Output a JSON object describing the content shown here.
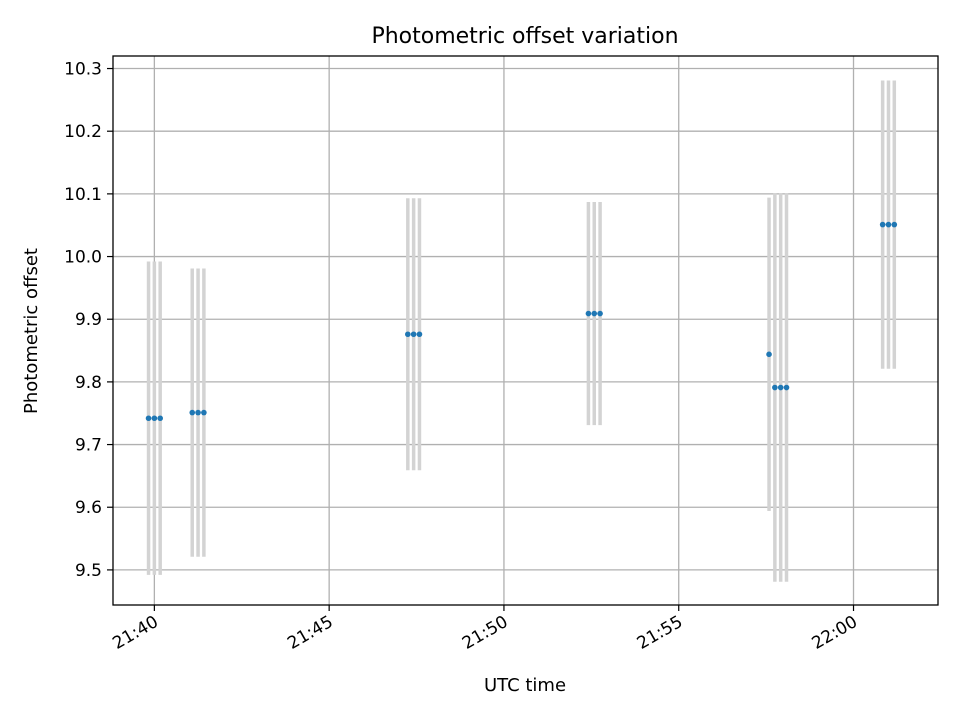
{
  "chart_data": {
    "type": "scatter",
    "title": "Photometric offset variation",
    "xlabel": "UTC time",
    "ylabel": "Photometric offset",
    "x_tick_labels": [
      "21:40",
      "21:45",
      "21:50",
      "21:55",
      "22:00"
    ],
    "x_tick_minutes": [
      40,
      45,
      50,
      55,
      60
    ],
    "y_ticks": [
      "9.5",
      "9.6",
      "9.7",
      "9.8",
      "9.9",
      "10.0",
      "10.1",
      "10.2",
      "10.3"
    ],
    "xlim": [
      "21:38:49",
      "22:02:25"
    ],
    "ylim": [
      9.444,
      10.32
    ],
    "grid": true,
    "point_color": "#1f77b4",
    "errorbar_color": "#d3d3d3",
    "points": [
      {
        "time": "21:39:50",
        "y": 9.742,
        "err": 0.25
      },
      {
        "time": "21:40:00",
        "y": 9.742,
        "err": 0.25
      },
      {
        "time": "21:40:10",
        "y": 9.742,
        "err": 0.25
      },
      {
        "time": "21:41:05",
        "y": 9.751,
        "err": 0.23
      },
      {
        "time": "21:41:15",
        "y": 9.751,
        "err": 0.23
      },
      {
        "time": "21:41:25",
        "y": 9.751,
        "err": 0.23
      },
      {
        "time": "21:47:15",
        "y": 9.876,
        "err": 0.217
      },
      {
        "time": "21:47:25",
        "y": 9.876,
        "err": 0.217
      },
      {
        "time": "21:47:35",
        "y": 9.876,
        "err": 0.217
      },
      {
        "time": "21:52:25",
        "y": 9.909,
        "err": 0.178
      },
      {
        "time": "21:52:35",
        "y": 9.909,
        "err": 0.178
      },
      {
        "time": "21:52:45",
        "y": 9.909,
        "err": 0.178
      },
      {
        "time": "21:57:35",
        "y": 9.844,
        "err": 0.25
      },
      {
        "time": "21:57:45",
        "y": 9.791,
        "err": 0.31
      },
      {
        "time": "21:57:55",
        "y": 9.791,
        "err": 0.31
      },
      {
        "time": "21:58:05",
        "y": 9.791,
        "err": 0.31
      },
      {
        "time": "22:00:50",
        "y": 10.051,
        "err": 0.23
      },
      {
        "time": "22:01:00",
        "y": 10.051,
        "err": 0.23
      },
      {
        "time": "22:01:10",
        "y": 10.051,
        "err": 0.23
      }
    ]
  }
}
